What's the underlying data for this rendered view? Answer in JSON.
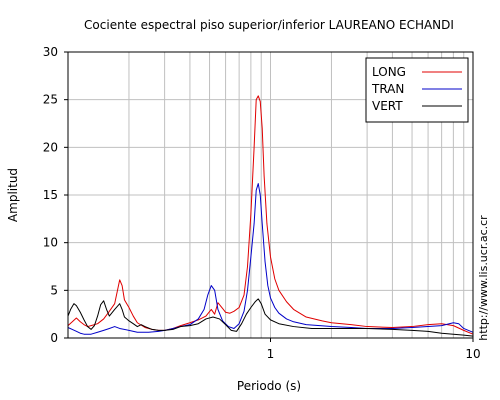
{
  "chart_data": {
    "type": "line",
    "title": "Cociente espectral piso superior/inferior LAUREANO ECHANDI",
    "xlabel": "Periodo (s)",
    "ylabel": "Amplitud",
    "x_scale": "log",
    "xlim": [
      0.1,
      10
    ],
    "ylim": [
      0,
      30
    ],
    "yticks": [
      0,
      5,
      10,
      15,
      20,
      25,
      30
    ],
    "xtick_labels": [
      {
        "value": 1,
        "label": "1"
      },
      {
        "value": 10,
        "label": "10"
      }
    ],
    "grid": true,
    "legend_position": "top-right",
    "watermark": "http://www.lis.ucr.ac.cr",
    "series": [
      {
        "name": "LONG",
        "color": "#e00000",
        "points": [
          [
            0.1,
            1.3
          ],
          [
            0.105,
            1.7
          ],
          [
            0.11,
            2.1
          ],
          [
            0.115,
            1.7
          ],
          [
            0.12,
            1.4
          ],
          [
            0.125,
            1.2
          ],
          [
            0.13,
            1.3
          ],
          [
            0.14,
            1.5
          ],
          [
            0.15,
            2.0
          ],
          [
            0.16,
            2.8
          ],
          [
            0.17,
            3.6
          ],
          [
            0.18,
            6.1
          ],
          [
            0.185,
            5.5
          ],
          [
            0.19,
            4.0
          ],
          [
            0.2,
            3.2
          ],
          [
            0.21,
            2.3
          ],
          [
            0.22,
            1.6
          ],
          [
            0.24,
            1.1
          ],
          [
            0.26,
            0.9
          ],
          [
            0.28,
            0.8
          ],
          [
            0.3,
            0.8
          ],
          [
            0.33,
            1.0
          ],
          [
            0.36,
            1.3
          ],
          [
            0.4,
            1.6
          ],
          [
            0.44,
            1.9
          ],
          [
            0.48,
            2.3
          ],
          [
            0.51,
            3.0
          ],
          [
            0.53,
            2.5
          ],
          [
            0.55,
            3.7
          ],
          [
            0.58,
            3.1
          ],
          [
            0.6,
            2.7
          ],
          [
            0.63,
            2.6
          ],
          [
            0.66,
            2.8
          ],
          [
            0.7,
            3.2
          ],
          [
            0.74,
            4.5
          ],
          [
            0.77,
            7.5
          ],
          [
            0.8,
            13.0
          ],
          [
            0.83,
            20.0
          ],
          [
            0.85,
            25.0
          ],
          [
            0.87,
            25.4
          ],
          [
            0.89,
            24.8
          ],
          [
            0.91,
            22.0
          ],
          [
            0.93,
            17.0
          ],
          [
            0.96,
            12.0
          ],
          [
            1.0,
            8.5
          ],
          [
            1.05,
            6.2
          ],
          [
            1.1,
            5.0
          ],
          [
            1.2,
            3.8
          ],
          [
            1.3,
            3.0
          ],
          [
            1.5,
            2.2
          ],
          [
            1.8,
            1.8
          ],
          [
            2.0,
            1.6
          ],
          [
            2.5,
            1.4
          ],
          [
            3.0,
            1.2
          ],
          [
            4.0,
            1.1
          ],
          [
            5.0,
            1.2
          ],
          [
            6.0,
            1.4
          ],
          [
            7.0,
            1.5
          ],
          [
            8.0,
            1.3
          ],
          [
            9.0,
            0.8
          ],
          [
            10.0,
            0.4
          ]
        ]
      },
      {
        "name": "TRAN",
        "color": "#0000c8",
        "points": [
          [
            0.1,
            1.1
          ],
          [
            0.105,
            0.9
          ],
          [
            0.11,
            0.7
          ],
          [
            0.115,
            0.5
          ],
          [
            0.12,
            0.4
          ],
          [
            0.13,
            0.4
          ],
          [
            0.14,
            0.6
          ],
          [
            0.15,
            0.8
          ],
          [
            0.16,
            1.0
          ],
          [
            0.17,
            1.2
          ],
          [
            0.18,
            1.0
          ],
          [
            0.2,
            0.8
          ],
          [
            0.22,
            0.6
          ],
          [
            0.25,
            0.6
          ],
          [
            0.28,
            0.7
          ],
          [
            0.3,
            0.8
          ],
          [
            0.33,
            1.0
          ],
          [
            0.36,
            1.2
          ],
          [
            0.4,
            1.4
          ],
          [
            0.44,
            2.0
          ],
          [
            0.47,
            3.0
          ],
          [
            0.49,
            4.5
          ],
          [
            0.51,
            5.5
          ],
          [
            0.53,
            5.0
          ],
          [
            0.55,
            3.0
          ],
          [
            0.58,
            1.8
          ],
          [
            0.62,
            1.2
          ],
          [
            0.66,
            1.0
          ],
          [
            0.7,
            1.5
          ],
          [
            0.74,
            2.8
          ],
          [
            0.77,
            5.0
          ],
          [
            0.8,
            8.5
          ],
          [
            0.83,
            12.0
          ],
          [
            0.85,
            15.5
          ],
          [
            0.87,
            16.2
          ],
          [
            0.89,
            15.0
          ],
          [
            0.91,
            12.0
          ],
          [
            0.94,
            8.0
          ],
          [
            0.97,
            5.5
          ],
          [
            1.0,
            4.2
          ],
          [
            1.05,
            3.2
          ],
          [
            1.1,
            2.6
          ],
          [
            1.2,
            2.0
          ],
          [
            1.3,
            1.7
          ],
          [
            1.5,
            1.4
          ],
          [
            2.0,
            1.2
          ],
          [
            2.5,
            1.1
          ],
          [
            3.0,
            1.0
          ],
          [
            4.0,
            1.0
          ],
          [
            5.0,
            1.1
          ],
          [
            6.0,
            1.2
          ],
          [
            7.0,
            1.3
          ],
          [
            8.0,
            1.6
          ],
          [
            8.5,
            1.5
          ],
          [
            9.0,
            1.0
          ],
          [
            10.0,
            0.6
          ]
        ]
      },
      {
        "name": "VERT",
        "color": "#000000",
        "points": [
          [
            0.1,
            2.3
          ],
          [
            0.103,
            3.0
          ],
          [
            0.107,
            3.6
          ],
          [
            0.11,
            3.4
          ],
          [
            0.115,
            2.7
          ],
          [
            0.12,
            1.9
          ],
          [
            0.125,
            1.2
          ],
          [
            0.13,
            0.9
          ],
          [
            0.135,
            1.3
          ],
          [
            0.14,
            2.3
          ],
          [
            0.145,
            3.5
          ],
          [
            0.15,
            3.9
          ],
          [
            0.155,
            3.0
          ],
          [
            0.16,
            2.3
          ],
          [
            0.17,
            3.0
          ],
          [
            0.18,
            3.6
          ],
          [
            0.185,
            3.0
          ],
          [
            0.19,
            2.2
          ],
          [
            0.2,
            1.8
          ],
          [
            0.21,
            1.5
          ],
          [
            0.22,
            1.2
          ],
          [
            0.23,
            1.4
          ],
          [
            0.24,
            1.2
          ],
          [
            0.26,
            0.9
          ],
          [
            0.28,
            0.8
          ],
          [
            0.3,
            0.8
          ],
          [
            0.33,
            0.9
          ],
          [
            0.36,
            1.2
          ],
          [
            0.4,
            1.3
          ],
          [
            0.44,
            1.5
          ],
          [
            0.48,
            2.0
          ],
          [
            0.52,
            2.2
          ],
          [
            0.56,
            2.0
          ],
          [
            0.6,
            1.4
          ],
          [
            0.64,
            0.8
          ],
          [
            0.68,
            0.7
          ],
          [
            0.72,
            1.5
          ],
          [
            0.76,
            2.5
          ],
          [
            0.8,
            3.2
          ],
          [
            0.84,
            3.8
          ],
          [
            0.87,
            4.1
          ],
          [
            0.9,
            3.6
          ],
          [
            0.94,
            2.5
          ],
          [
            1.0,
            1.9
          ],
          [
            1.1,
            1.5
          ],
          [
            1.3,
            1.2
          ],
          [
            1.6,
            1.0
          ],
          [
            2.0,
            1.0
          ],
          [
            2.5,
            1.0
          ],
          [
            3.0,
            1.0
          ],
          [
            4.0,
            0.9
          ],
          [
            5.0,
            0.8
          ],
          [
            6.0,
            0.7
          ],
          [
            7.0,
            0.5
          ],
          [
            8.0,
            0.4
          ],
          [
            9.0,
            0.3
          ],
          [
            10.0,
            0.2
          ]
        ]
      }
    ]
  }
}
